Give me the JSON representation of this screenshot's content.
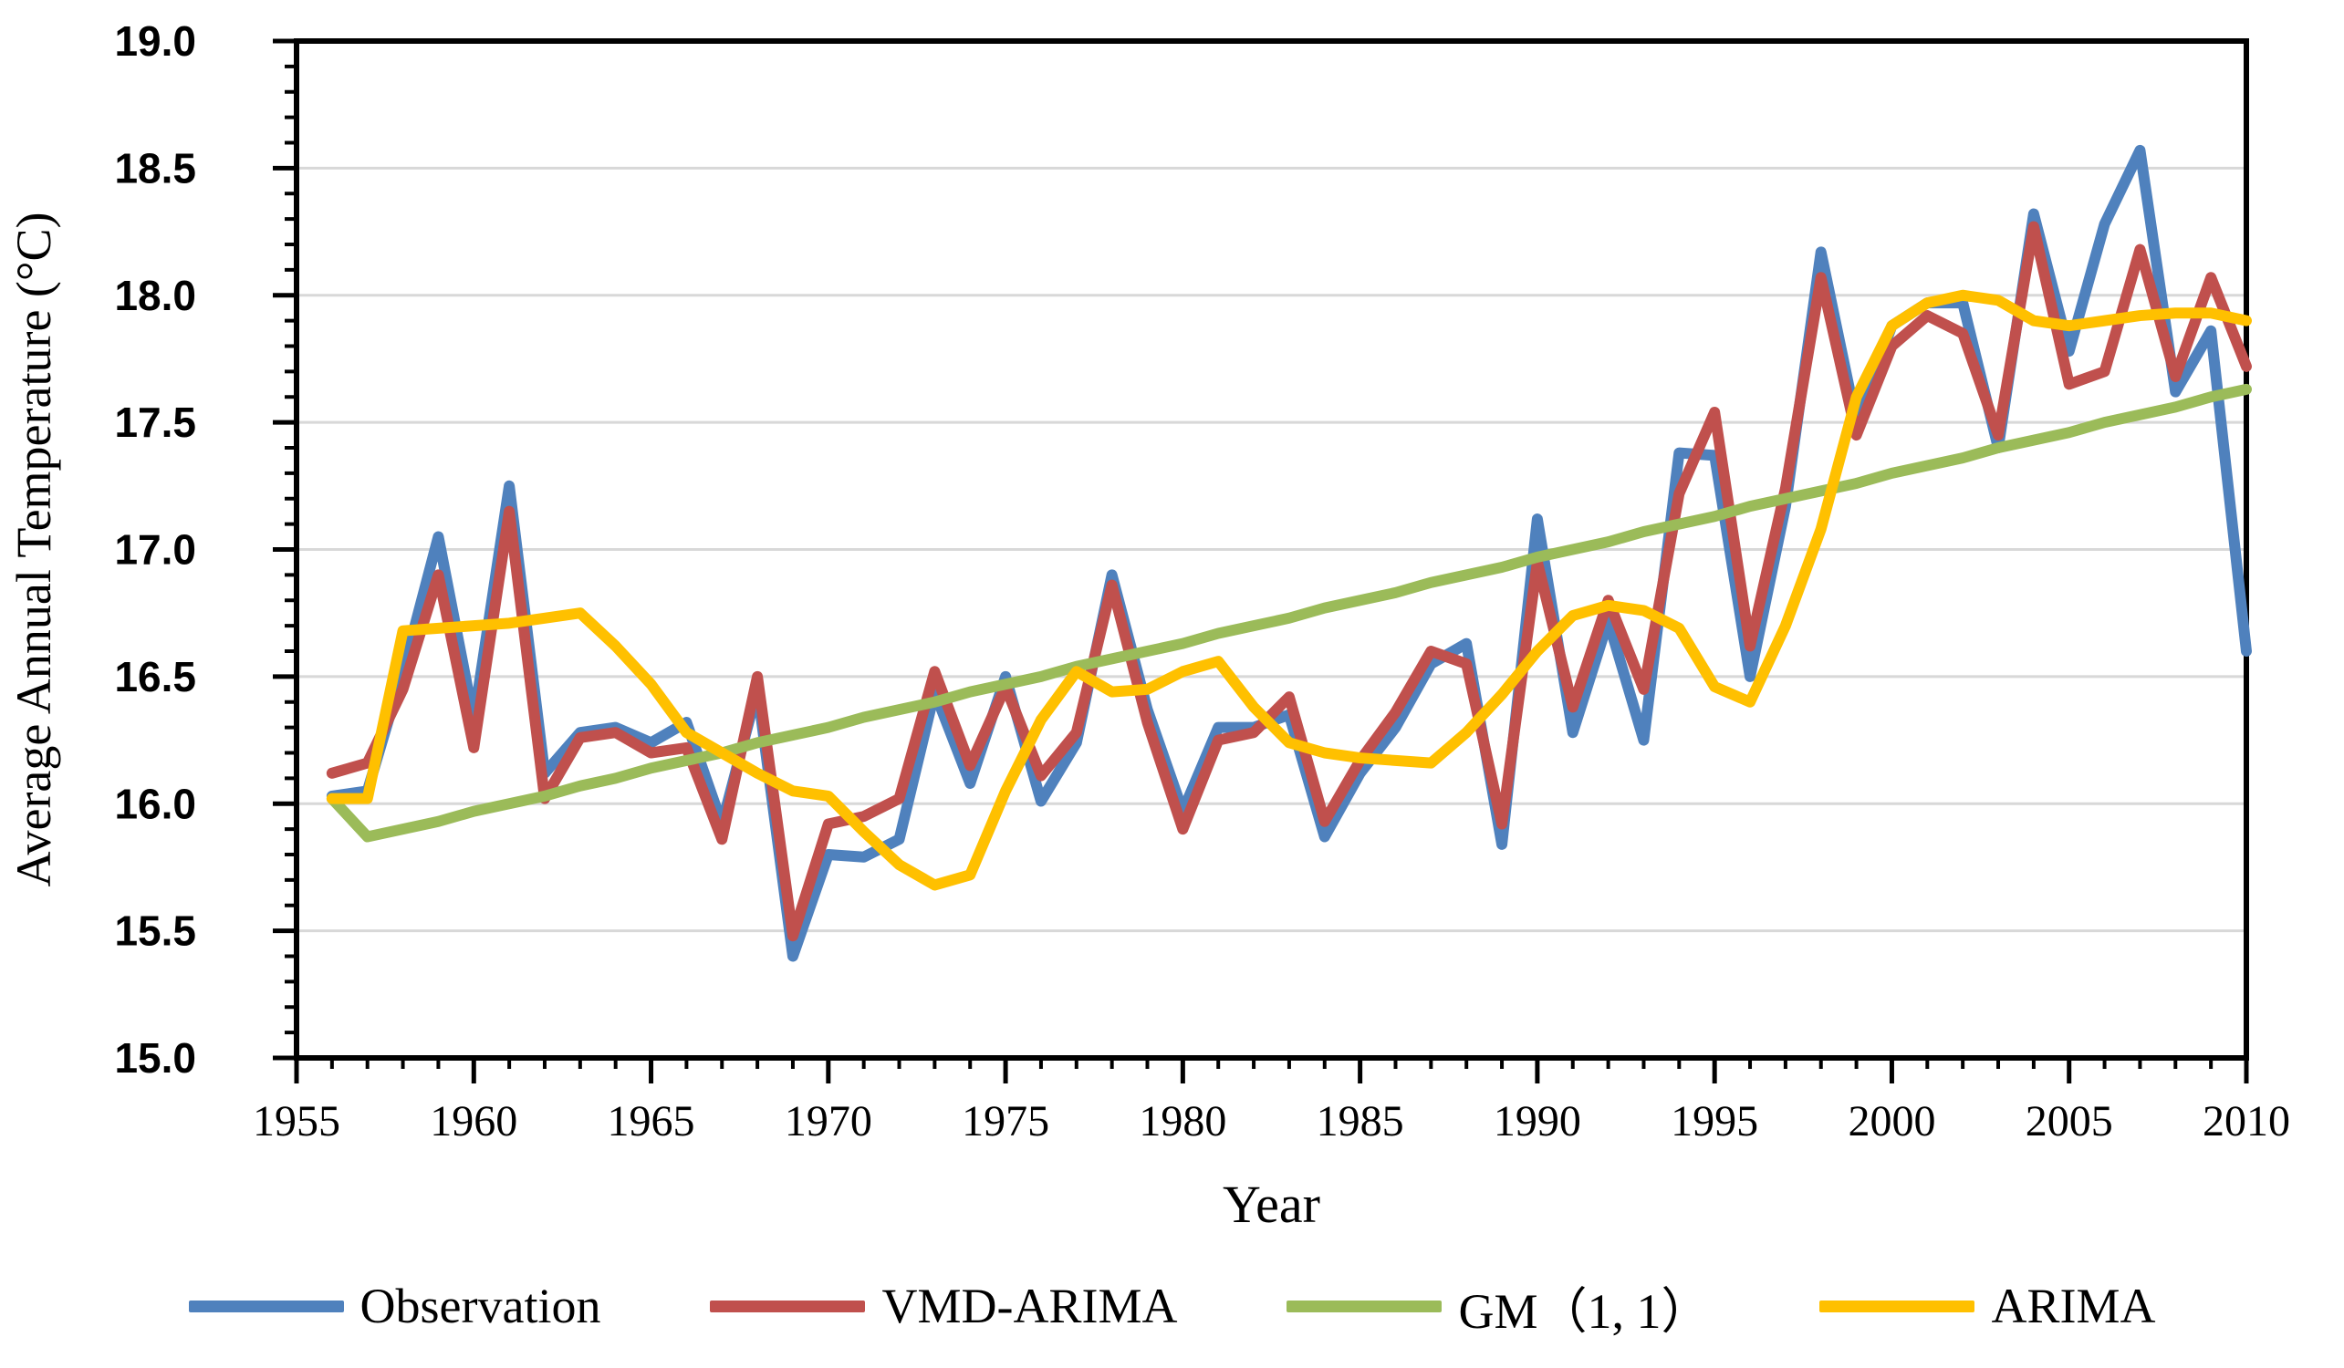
{
  "chart_data": {
    "type": "line",
    "title": "",
    "xlabel": "Year",
    "ylabel": "Average Annual Temperature (°C)",
    "xlim": [
      1955,
      2010
    ],
    "ylim": [
      15.0,
      19.0
    ],
    "x_major_step": 5,
    "x_minor_step": 1,
    "y_major_step": 0.5,
    "y_minor_step": 0.1,
    "grid": "horizontal-only",
    "legend_position": "bottom",
    "x_tick_labels": [
      "1955",
      "1960",
      "1965",
      "1970",
      "1975",
      "1980",
      "1985",
      "1990",
      "1995",
      "2000",
      "2005",
      "2010"
    ],
    "y_tick_labels": [
      "15.0",
      "15.5",
      "16.0",
      "16.5",
      "17.0",
      "17.5",
      "18.0",
      "18.5",
      "19.0"
    ],
    "x": [
      1956,
      1957,
      1958,
      1959,
      1960,
      1961,
      1962,
      1963,
      1964,
      1965,
      1966,
      1967,
      1968,
      1969,
      1970,
      1971,
      1972,
      1973,
      1974,
      1975,
      1976,
      1977,
      1978,
      1979,
      1980,
      1981,
      1982,
      1983,
      1984,
      1985,
      1986,
      1987,
      1988,
      1989,
      1990,
      1991,
      1992,
      1993,
      1994,
      1995,
      1996,
      1997,
      1998,
      1999,
      2000,
      2001,
      2002,
      2003,
      2004,
      2005,
      2006,
      2007,
      2008,
      2009,
      2010
    ],
    "series": [
      {
        "name": "Observation",
        "color": "#4F81BD",
        "values": [
          16.03,
          16.05,
          16.52,
          17.05,
          16.33,
          17.25,
          16.12,
          16.28,
          16.3,
          16.24,
          16.32,
          15.92,
          16.45,
          15.4,
          15.8,
          15.79,
          15.86,
          16.44,
          16.08,
          16.5,
          16.01,
          16.24,
          16.9,
          16.37,
          15.97,
          16.3,
          16.3,
          16.35,
          15.87,
          16.12,
          16.3,
          16.55,
          16.63,
          15.84,
          17.12,
          16.28,
          16.72,
          16.25,
          17.38,
          17.37,
          16.5,
          17.17,
          18.17,
          17.5,
          17.88,
          17.97,
          17.97,
          17.4,
          18.32,
          17.78,
          18.28,
          18.57,
          17.62,
          17.86,
          16.6
        ]
      },
      {
        "name": "VMD-ARIMA",
        "color": "#C0504D",
        "values": [
          16.12,
          16.16,
          16.45,
          16.9,
          16.22,
          17.15,
          16.02,
          16.26,
          16.28,
          16.2,
          16.22,
          15.86,
          16.5,
          15.48,
          15.92,
          15.95,
          16.02,
          16.52,
          16.15,
          16.46,
          16.11,
          16.28,
          16.86,
          16.32,
          15.9,
          16.25,
          16.28,
          16.42,
          15.93,
          16.17,
          16.36,
          16.6,
          16.55,
          15.92,
          16.95,
          16.38,
          16.8,
          16.45,
          17.22,
          17.54,
          16.62,
          17.24,
          18.07,
          17.45,
          17.8,
          17.92,
          17.85,
          17.45,
          18.27,
          17.65,
          17.7,
          18.18,
          17.68,
          18.07,
          17.72
        ]
      },
      {
        "name": "GM（1, 1）",
        "color": "#9BBB59",
        "values": [
          16.02,
          15.87,
          15.9,
          15.93,
          15.97,
          16.0,
          16.03,
          16.07,
          16.1,
          16.14,
          16.17,
          16.2,
          16.24,
          16.27,
          16.3,
          16.34,
          16.37,
          16.4,
          16.44,
          16.47,
          16.5,
          16.54,
          16.57,
          16.6,
          16.63,
          16.67,
          16.7,
          16.73,
          16.77,
          16.8,
          16.83,
          16.87,
          16.9,
          16.93,
          16.97,
          17.0,
          17.03,
          17.07,
          17.1,
          17.13,
          17.17,
          17.2,
          17.23,
          17.26,
          17.3,
          17.33,
          17.36,
          17.4,
          17.43,
          17.46,
          17.5,
          17.53,
          17.56,
          17.6,
          17.63
        ]
      },
      {
        "name": "ARIMA",
        "color": "#FFC000",
        "values": [
          16.02,
          16.02,
          16.68,
          16.69,
          16.7,
          16.71,
          16.73,
          16.75,
          16.62,
          16.47,
          16.28,
          16.2,
          16.12,
          16.05,
          16.03,
          15.89,
          15.76,
          15.68,
          15.72,
          16.05,
          16.33,
          16.52,
          16.44,
          16.45,
          16.52,
          16.56,
          16.38,
          16.24,
          16.2,
          16.18,
          16.17,
          16.16,
          16.28,
          16.43,
          16.6,
          16.74,
          16.78,
          16.76,
          16.69,
          16.46,
          16.4,
          16.7,
          17.08,
          17.6,
          17.88,
          17.97,
          18.0,
          17.98,
          17.9,
          17.88,
          17.9,
          17.92,
          17.93,
          17.93,
          17.9
        ]
      }
    ]
  },
  "style": {
    "grid_color": "#D8D8D8",
    "axis_color": "#000000",
    "text_color": "#000000"
  }
}
